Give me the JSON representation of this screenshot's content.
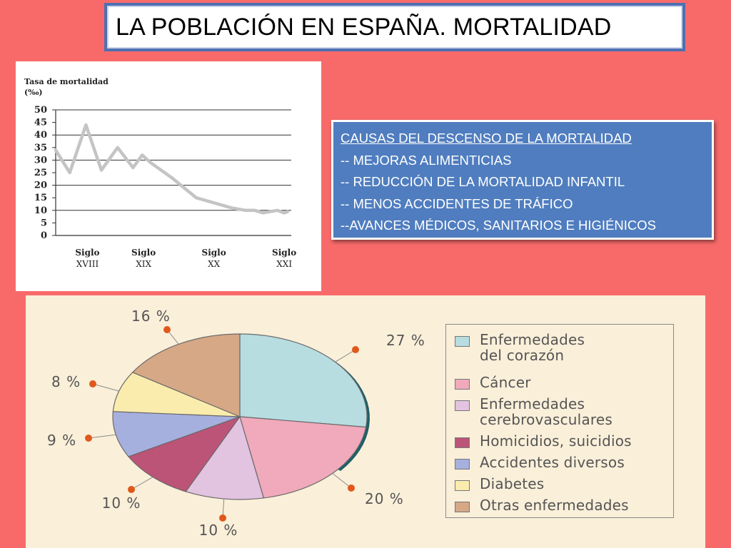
{
  "title": "LA POBLACIÓN EN ESPAÑA. MORTALIDAD",
  "info": {
    "heading": "CAUSAS DEL DESCENSO DE LA MORTALIDAD ",
    "items": [
      "-- MEJORAS ALIMENTICIAS",
      "-- REDUCCIÓN DE LA MORTALIDAD INFANTIL",
      "-- MENOS ACCIDENTES DE TRÁFICO",
      "--AVANCES MÉDICOS, SANITARIOS E HIGIÉNICOS"
    ]
  },
  "colors": {
    "background": "#f86a6a",
    "title_border": "#4f6fb0",
    "info_bg": "#4f7dbf",
    "line": "#c4c4c4",
    "pie_bg": "#faefd9"
  },
  "chart_data": [
    {
      "type": "line",
      "title": "Tasa de mortalidad (‰)",
      "ylabel_lines": [
        "Tasa de mortalidad",
        "(‰)"
      ],
      "ylim": [
        0,
        50
      ],
      "yticks": [
        0,
        5,
        10,
        15,
        20,
        25,
        30,
        35,
        40,
        45,
        50
      ],
      "grid": true,
      "xticks": [
        {
          "lines": [
            "Siglo",
            "XVIII"
          ],
          "x": 0.1
        },
        {
          "lines": [
            "Siglo",
            "XIX"
          ],
          "x": 1.0
        },
        {
          "lines": [
            "Siglo",
            "XX"
          ],
          "x": 2.0
        },
        {
          "lines": [
            "Siglo",
            "XXI"
          ],
          "x": 3.0
        }
      ],
      "xlim": [
        -0.25,
        3.1
      ],
      "series": [
        {
          "x": [
            -0.25,
            -0.05,
            0.18,
            0.4,
            0.63,
            0.85,
            0.98,
            1.1,
            1.4,
            1.75,
            2.0,
            2.25,
            2.45,
            2.58,
            2.7,
            2.8,
            2.9,
            3.0,
            3.05
          ],
          "y": [
            34,
            25,
            44,
            26,
            35,
            27,
            32,
            29,
            23,
            15,
            13,
            11,
            10,
            10,
            9,
            9.5,
            10,
            9,
            9.5
          ]
        }
      ]
    },
    {
      "type": "pie",
      "slices": [
        {
          "label": "Enfermedades\ndel corazón",
          "value": 27,
          "pct": "27 %",
          "color": "#b7dde1"
        },
        {
          "label": "Cáncer",
          "value": 20,
          "pct": "20 %",
          "color": "#f0aabb"
        },
        {
          "label": "Enfermedades\ncerebrovasculares",
          "value": 10,
          "pct": "10 %",
          "color": "#e2c3e0"
        },
        {
          "label": "Homicidios, suicidios",
          "value": 10,
          "pct": "10 %",
          "color": "#bc5477"
        },
        {
          "label": "Accidentes diversos",
          "value": 9,
          "pct": "9 %",
          "color": "#a6b0df"
        },
        {
          "label": "Diabetes",
          "value": 8,
          "pct": "8 %",
          "color": "#faecad"
        },
        {
          "label": "Otras enfermedades",
          "value": 16,
          "pct": "16 %",
          "color": "#d6a886"
        }
      ],
      "legend": "right"
    }
  ]
}
